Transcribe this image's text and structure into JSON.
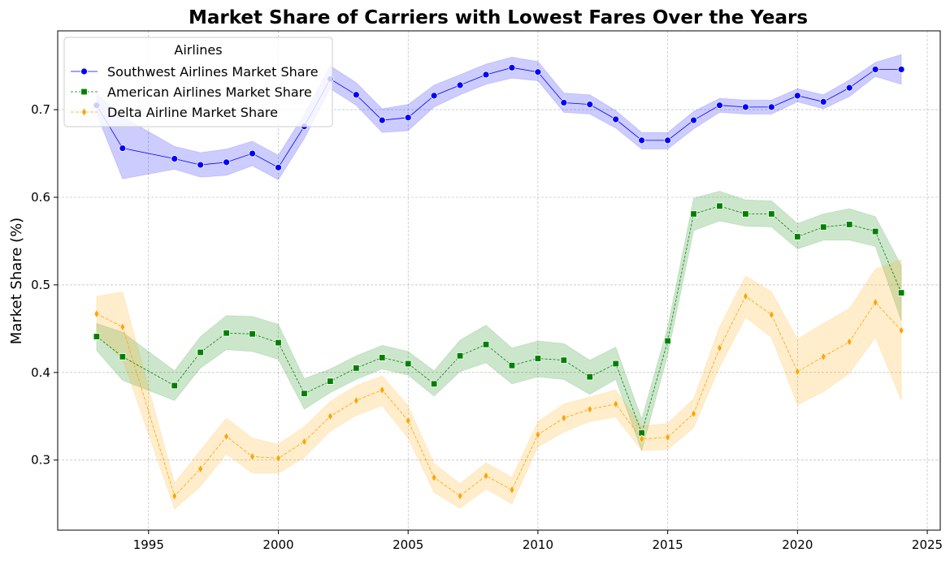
{
  "chart_data": {
    "type": "line",
    "title": "Market Share of Carriers with Lowest Fares Over the Years",
    "xlabel": "",
    "ylabel": "Market Share (%)",
    "xlim": [
      1991.5,
      2025.5
    ],
    "ylim": [
      0.22,
      0.79
    ],
    "xticks": [
      1995,
      2000,
      2005,
      2010,
      2015,
      2020,
      2025
    ],
    "yticks": [
      0.3,
      0.4,
      0.5,
      0.6,
      0.7
    ],
    "ytick_labels": [
      "0.3",
      "0.4",
      "0.5",
      "0.6",
      "0.7"
    ],
    "grid": true,
    "legend": {
      "title": "Airlines",
      "position": "top-left"
    },
    "x": [
      1993,
      1994,
      1996,
      1997,
      1998,
      1999,
      2000,
      2001,
      2002,
      2003,
      2004,
      2005,
      2006,
      2007,
      2008,
      2009,
      2010,
      2011,
      2012,
      2013,
      2014,
      2015,
      2016,
      2017,
      2018,
      2019,
      2020,
      2021,
      2022,
      2023,
      2024
    ],
    "series": [
      {
        "name": "Southwest Airlines Market Share",
        "color": "#0000ff",
        "marker": "circle",
        "values": [
          0.705,
          0.656,
          0.644,
          0.637,
          0.64,
          0.65,
          0.634,
          0.681,
          0.735,
          0.717,
          0.688,
          0.691,
          0.716,
          0.728,
          0.74,
          0.748,
          0.743,
          0.708,
          0.706,
          0.689,
          0.665,
          0.665,
          0.688,
          0.705,
          0.703,
          0.703,
          0.716,
          0.709,
          0.725,
          0.746,
          0.746
        ],
        "lower": [
          0.695,
          0.621,
          0.632,
          0.623,
          0.625,
          0.636,
          0.62,
          0.667,
          0.724,
          0.705,
          0.674,
          0.676,
          0.703,
          0.717,
          0.729,
          0.736,
          0.733,
          0.697,
          0.695,
          0.679,
          0.655,
          0.655,
          0.678,
          0.697,
          0.695,
          0.695,
          0.709,
          0.701,
          0.715,
          0.738,
          0.729
        ],
        "upper": [
          0.718,
          0.692,
          0.658,
          0.651,
          0.655,
          0.664,
          0.648,
          0.695,
          0.75,
          0.731,
          0.701,
          0.706,
          0.728,
          0.74,
          0.752,
          0.76,
          0.755,
          0.719,
          0.717,
          0.699,
          0.674,
          0.674,
          0.698,
          0.713,
          0.711,
          0.711,
          0.724,
          0.717,
          0.734,
          0.754,
          0.763
        ]
      },
      {
        "name": "American Airlines Market Share",
        "color": "#008000",
        "marker": "square",
        "values": [
          0.441,
          0.418,
          0.385,
          0.423,
          0.445,
          0.444,
          0.434,
          0.376,
          0.39,
          0.405,
          0.417,
          0.41,
          0.387,
          0.419,
          0.432,
          0.408,
          0.416,
          0.414,
          0.395,
          0.41,
          0.331,
          0.436,
          0.581,
          0.59,
          0.581,
          0.581,
          0.555,
          0.566,
          0.569,
          0.561,
          0.491
        ],
        "lower": [
          0.425,
          0.391,
          0.368,
          0.405,
          0.426,
          0.424,
          0.415,
          0.358,
          0.377,
          0.392,
          0.404,
          0.397,
          0.373,
          0.401,
          0.411,
          0.387,
          0.395,
          0.392,
          0.375,
          0.392,
          0.311,
          0.42,
          0.562,
          0.573,
          0.567,
          0.566,
          0.541,
          0.551,
          0.551,
          0.544,
          0.459
        ],
        "upper": [
          0.456,
          0.446,
          0.402,
          0.441,
          0.465,
          0.464,
          0.455,
          0.393,
          0.404,
          0.419,
          0.431,
          0.424,
          0.402,
          0.437,
          0.454,
          0.428,
          0.436,
          0.433,
          0.414,
          0.429,
          0.347,
          0.452,
          0.599,
          0.607,
          0.597,
          0.596,
          0.57,
          0.581,
          0.587,
          0.578,
          0.522
        ]
      },
      {
        "name": "Delta Airline Market Share",
        "color": "#ffa500",
        "marker": "diamond",
        "values": [
          0.467,
          0.452,
          0.259,
          0.29,
          0.327,
          0.304,
          0.302,
          0.321,
          0.35,
          0.368,
          0.38,
          0.345,
          0.28,
          0.259,
          0.282,
          0.266,
          0.329,
          0.348,
          0.358,
          0.364,
          0.324,
          0.326,
          0.353,
          0.428,
          0.487,
          0.466,
          0.401,
          0.418,
          0.435,
          0.48,
          0.448
        ],
        "lower": [
          0.444,
          0.415,
          0.244,
          0.27,
          0.307,
          0.285,
          0.285,
          0.303,
          0.333,
          0.351,
          0.362,
          0.325,
          0.263,
          0.245,
          0.267,
          0.25,
          0.315,
          0.332,
          0.344,
          0.349,
          0.311,
          0.312,
          0.337,
          0.406,
          0.463,
          0.44,
          0.363,
          0.378,
          0.399,
          0.44,
          0.368
        ],
        "upper": [
          0.487,
          0.492,
          0.274,
          0.311,
          0.348,
          0.325,
          0.318,
          0.338,
          0.367,
          0.385,
          0.396,
          0.362,
          0.296,
          0.273,
          0.297,
          0.28,
          0.344,
          0.364,
          0.372,
          0.38,
          0.339,
          0.342,
          0.37,
          0.452,
          0.51,
          0.492,
          0.438,
          0.456,
          0.473,
          0.518,
          0.529
        ]
      }
    ]
  }
}
